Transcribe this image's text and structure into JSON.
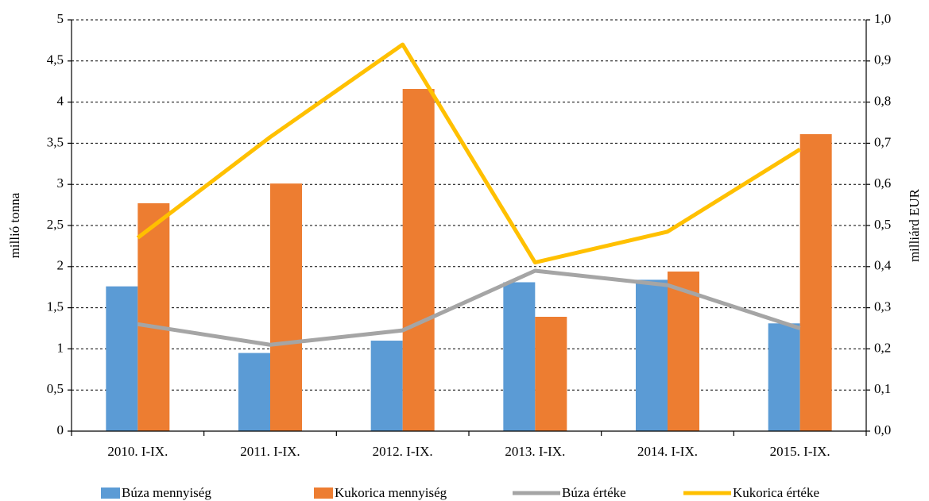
{
  "chart_data": {
    "type": "bar",
    "categories": [
      "2010. I-IX.",
      "2011. I-IX.",
      "2012. I-IX.",
      "2013. I-IX.",
      "2014. I-IX.",
      "2015. I-IX."
    ],
    "series": [
      {
        "name": "Búza mennyiség",
        "type": "bar",
        "color": "#5b9bd5",
        "values": [
          1.76,
          0.95,
          1.1,
          1.81,
          1.84,
          1.31
        ]
      },
      {
        "name": "Kukorica mennyiség",
        "type": "bar",
        "color": "#ed7d31",
        "values": [
          2.77,
          3.01,
          4.16,
          1.39,
          1.94,
          3.61
        ]
      },
      {
        "name": "Búza értéke",
        "type": "line",
        "axis": "y2",
        "color": "#a5a5a5",
        "values": [
          0.26,
          0.21,
          0.245,
          0.39,
          0.355,
          0.25
        ]
      },
      {
        "name": "Kukorica értéke",
        "type": "line",
        "axis": "y2",
        "color": "#ffc000",
        "values": [
          0.47,
          0.715,
          0.94,
          0.41,
          0.485,
          0.685
        ]
      }
    ],
    "ylabel": "millió tonna",
    "y2label": "milliárd EUR",
    "ylim": [
      0,
      5
    ],
    "yticks": [
      0,
      {
        "value": 0.5,
        "label": "0,5"
      },
      1,
      {
        "value": 1.5,
        "label": "1,5"
      },
      2,
      {
        "value": 2.5,
        "label": "2,5"
      },
      3,
      {
        "value": 3.5,
        "label": "3,5"
      },
      4,
      {
        "value": 4.5,
        "label": "4,5"
      },
      5
    ],
    "y2lim": [
      0,
      1
    ],
    "y2ticks": [
      {
        "value": 0,
        "label": "0,0"
      },
      {
        "value": 0.1,
        "label": "0,1"
      },
      {
        "value": 0.2,
        "label": "0,2"
      },
      {
        "value": 0.3,
        "label": "0,3"
      },
      {
        "value": 0.4,
        "label": "0,4"
      },
      {
        "value": 0.5,
        "label": "0,5"
      },
      {
        "value": 0.6,
        "label": "0,6"
      },
      {
        "value": 0.7,
        "label": "0,7"
      },
      {
        "value": 0.8,
        "label": "0,8"
      },
      {
        "value": 0.9,
        "label": "0,9"
      },
      {
        "value": 1,
        "label": "1,0"
      }
    ],
    "grid": true,
    "legend": "bottom"
  }
}
